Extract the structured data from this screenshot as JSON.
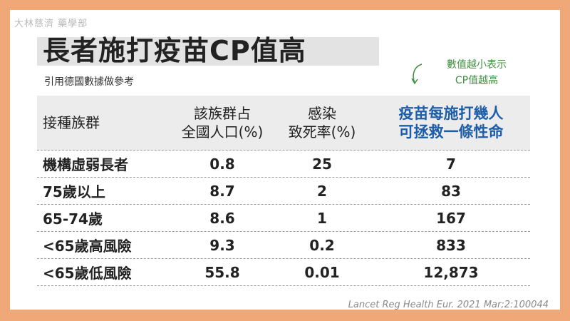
{
  "org_label": "大林慈濟 藥學部",
  "title": "長者施打疫苗CP值高",
  "subtitle": "引用德國數據做參考",
  "note": {
    "line1": "數值越小表示",
    "line2": "CP值越高"
  },
  "table": {
    "headers": [
      {
        "line1": "接種族群",
        "line2": ""
      },
      {
        "line1": "該族群占",
        "line2": "全國人口(%)"
      },
      {
        "line1": "感染",
        "line2": "致死率(%)"
      },
      {
        "line1": "疫苗每施打幾人",
        "line2": "可拯救一條性命"
      }
    ],
    "rows": [
      {
        "group": "機構虛弱長者",
        "population": "0.8",
        "fatality": "25",
        "save_one": "7"
      },
      {
        "group": "75歲以上",
        "population": "8.7",
        "fatality": "2",
        "save_one": "83"
      },
      {
        "group": "65-74歲",
        "population": "8.6",
        "fatality": "1",
        "save_one": "167"
      },
      {
        "group": "<65歲高風險",
        "population": "9.3",
        "fatality": "0.2",
        "save_one": "833"
      },
      {
        "group": "<65歲低風險",
        "population": "55.8",
        "fatality": "0.01",
        "save_one": "12,873"
      }
    ]
  },
  "citation": "Lancet Reg Health Eur. 2021 Mar;2:100044",
  "colors": {
    "frame": "#f0a878",
    "highlight_header": "#1d5ea8",
    "note": "#3f8f3f"
  }
}
